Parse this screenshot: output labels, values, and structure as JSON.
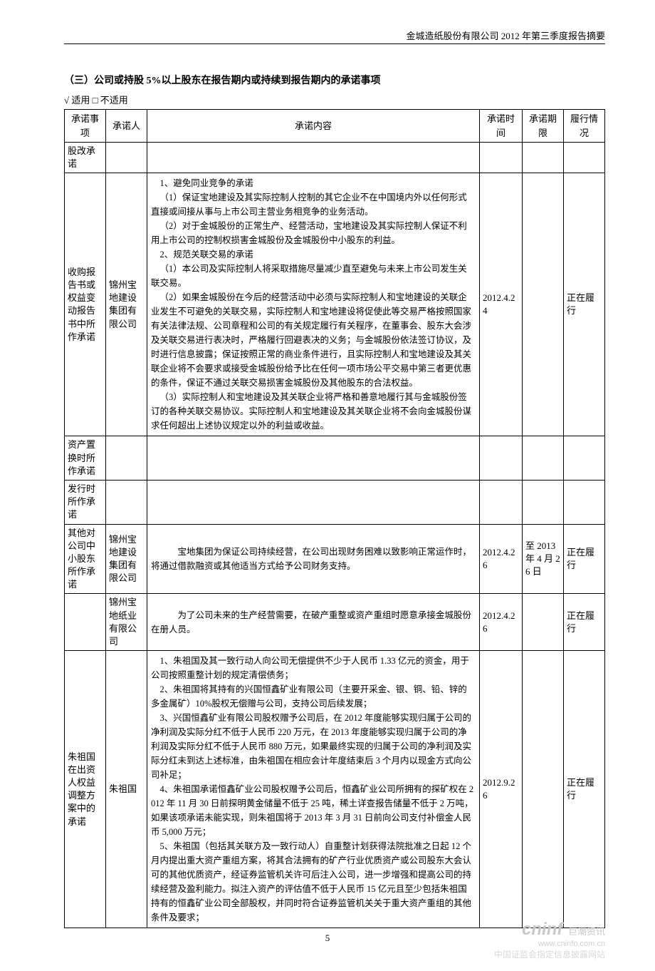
{
  "header": {
    "title": "金城造纸股份有限公司 2012 年第三季度报告摘要"
  },
  "section": {
    "title": "（三）公司或持股 5%以上股东在报告期内或持续到报告期内的承诺事项",
    "checkbox": "√ 适用 □ 不适用"
  },
  "table": {
    "headers": {
      "matter": "承诺事项",
      "person": "承诺人",
      "content": "承诺内容",
      "time": "承诺时间",
      "deadline": "承诺期限",
      "status": "履行情况"
    },
    "rows": [
      {
        "matter": "股改承诺",
        "person": "",
        "content": "",
        "time": "",
        "deadline": "",
        "status": ""
      },
      {
        "matter": "收购报告书或权益变动报告书中所作承诺",
        "person": "锦州宝地建设集团有限公司",
        "content_lines": [
          "1、避免同业竞争的承诺",
          "（1）保证宝地建设及其实际控制人控制的其它企业不在中国境内外以任何形式直接或间接从事与上市公司主营业务相竞争的业务活动。",
          "（2）对于金城股份的正常生产、经营活动，宝地建设及其实际控制人保证不利用上市公司的控制权损害金城股份及金城股份中小股东的利益。",
          "2、规范关联交易的承诺",
          "（1）本公司及实际控制人将采取措施尽量减少直至避免与未来上市公司发生关联交易。",
          "（2）如果金城股份在今后的经营活动中必须与实际控制人和宝地建设的关联企业发生不可避免的关联交易，实际控制人和宝地建设将促使此等交易严格按照国家有关法律法规、公司章程和公司的有关规定履行有关程序，在董事会、股东大会涉及关联交易进行表决时，严格履行回避表决的义务；与金城股份依法签订协议，及时进行信息披露；保证按照正常的商业条件进行，且实际控制人和宝地建设及其关联企业将不会要求或接受金城股份给予比在任何一项市场公平交易中第三者更优惠的条件，保证不通过关联交易损害金城股份及其他股东的合法权益。",
          "（3）实际控制人和宝地建设及其关联企业将严格和善意地履行其与金城股份签订的各种关联交易协议。实际控制人和宝地建设及其关联企业将不会向金城股份谋求任何超出上述协议规定以外的利益或收益。"
        ],
        "time": "2012.4.24",
        "deadline": "",
        "status": "正在履行"
      },
      {
        "matter": "资产置换时所作承诺",
        "person": "",
        "content": "",
        "time": "",
        "deadline": "",
        "status": ""
      },
      {
        "matter": "发行时所作承诺",
        "person": "",
        "content": "",
        "time": "",
        "deadline": "",
        "status": ""
      },
      {
        "matter": "其他对公司中小股东所作承诺",
        "person": "锦州宝地建设集团有限公司",
        "content_lines": [
          "　　宝地集团为保证公司持续经营，在公司出现财务困难以致影响正常运作时，将通过借款融资或其他适当方式给予公司财务支持。"
        ],
        "time": "2012.4.26",
        "deadline": "至 2013 年 4 月 26 日",
        "status": "正在履行"
      },
      {
        "matter": "",
        "person": "锦州宝地纸业有限公司",
        "content_lines": [
          "　　为了公司未来的生产经营需要，在破产重整或资产重组时愿意承接金城股份在册人员。"
        ],
        "time": "2012.4.26",
        "deadline": "",
        "status": "正在履行"
      },
      {
        "matter": "朱祖国在出资人权益调整方案中的承诺",
        "person": "朱祖国",
        "content_lines": [
          "1、朱祖国及其一致行动人向公司无偿提供不少于人民币 1.33 亿元的资金，用于公司按照重整计划的规定清偿债务；",
          "2、朱祖国将其持有的兴国恒鑫矿业有限公司（主要开采金、银、铜、铅、锌的多金属矿）10%股权无偿赠与公司，支持公司后续发展；",
          "3、兴国恒鑫矿业有限公司股权赠予公司后，在 2012 年度能够实现归属于公司的净利润及实际分红不低于人民币 220 万元，在 2013 年度能够实现归属于公司的净利润及实际分红不低于人民币 880 万元，如果最终实现的归属于公司的净利润及实际分红未到达上述标准，由朱祖国在相应会计年度结束后 3 个月内以现金方式向公司补足；",
          "4、朱祖国承诺恒鑫矿业公司股权赠予公司后，恒鑫矿业公司所拥有的探矿权在 2012 年 11 月 30 日前探明黄金储量不低于 25 吨，稀土详查报告储量不低于 2 万吨，如果该项承诺未能实现，则朱祖国将于 2013 年 3 月 31 日前向公司支付补偿金人民币 5,000 万元；",
          "5、朱祖国（包括其关联方及一致行动人）自重整计划获得法院批准之日起 12 个月内提出重大资产重组方案，将其合法拥有的矿产行业优质资产或公司股东大会认可的其他优质资产，经证券监管机关许可后注入公司，进一步增强和提高公司的持续经营及盈利能力。拟注入资产的评估值不低于人民币 15 亿元且至少包括朱祖国持有的恒鑫矿业公司全部股权，并同时符合证券监管机关关于重大资产重组的其他条件及要求；"
        ],
        "time": "2012.9.26",
        "deadline": "",
        "status": "正在履行"
      }
    ]
  },
  "page_number": "5",
  "watermark": {
    "logo": "cninf",
    "logo_cn": "巨潮资讯",
    "url": "www.cninfo.com.cn",
    "desc": "中国证监会指定信息披露网站"
  }
}
